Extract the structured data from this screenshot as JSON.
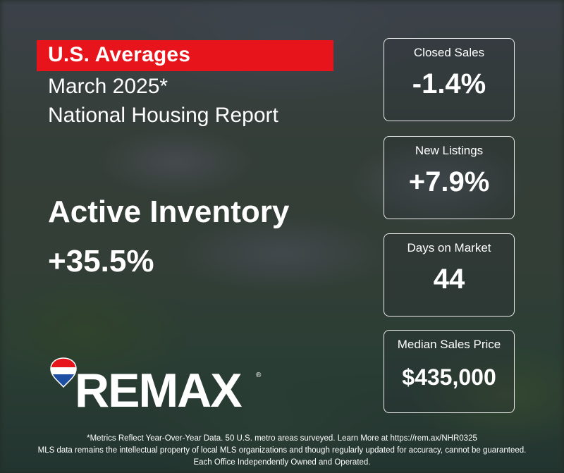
{
  "header": {
    "banner": "U.S. Averages",
    "subtitle_line1": "March 2025*",
    "subtitle_line2": "National Housing Report"
  },
  "hero": {
    "label": "Active Inventory",
    "value": "+35.5%"
  },
  "stats": [
    {
      "label": "Closed Sales",
      "value": "-1.4%"
    },
    {
      "label": "New Listings",
      "value": "+7.9%"
    },
    {
      "label": "Days on Market",
      "value": "44"
    },
    {
      "label": "Median Sales Price",
      "value": "$435,000"
    }
  ],
  "brand": {
    "name": "REMAX",
    "registered": "®",
    "colors": {
      "red": "#e8141b",
      "blue": "#1f4fa3",
      "white": "#ffffff"
    }
  },
  "footer": {
    "line1": "*Metrics Reflect Year-Over-Year Data. 50 U.S. metro areas surveyed. Learn More at https://rem.ax/NHR0325",
    "line2": "MLS data remains the intellectual property of local MLS organizations and though regularly updated for accuracy, cannot be guaranteed.",
    "line3": "Each Office Independently Owned and Operated."
  }
}
